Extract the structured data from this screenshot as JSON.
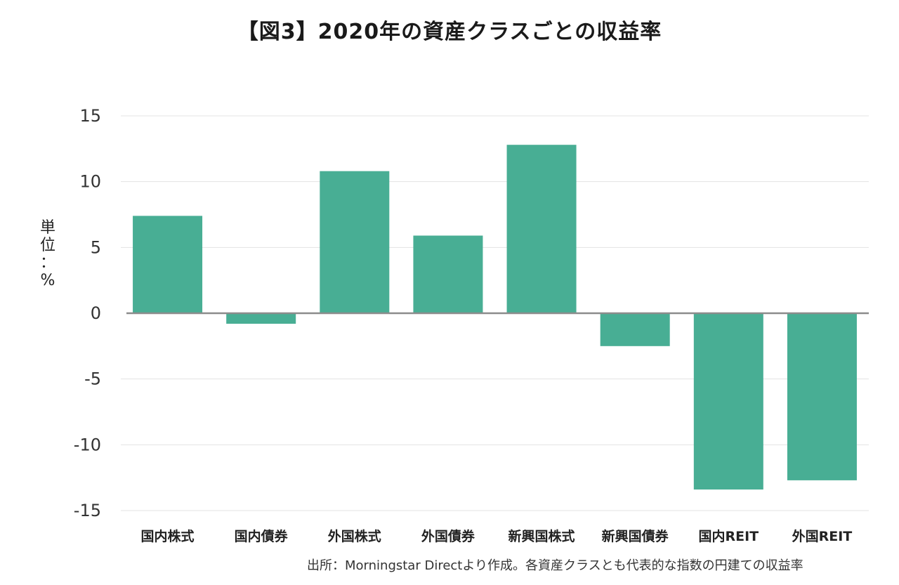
{
  "chart_data": {
    "type": "bar",
    "title": "【図3】2020年の資産クラスごとの収益率",
    "ylabel_chars": [
      "単",
      "位",
      "：",
      "%"
    ],
    "xlabel": "",
    "categories": [
      "国内株式",
      "国内債券",
      "外国株式",
      "外国債券",
      "新興国株式",
      "新興国債券",
      "国内REIT",
      "外国REIT"
    ],
    "values": [
      7.4,
      -0.8,
      10.8,
      5.9,
      12.8,
      -2.5,
      -13.4,
      -12.7
    ],
    "ylim": [
      -15,
      15
    ],
    "yticks": [
      15,
      10,
      5,
      0,
      -5,
      -10,
      -15
    ],
    "ytick_labels": [
      "15",
      "10",
      "5",
      "0",
      "-5",
      "-10",
      "-15"
    ],
    "grid": true,
    "legend": "none",
    "bar_color": "#48ae94",
    "zero_line_color": "#8c8c8c",
    "grid_color": "#e3e3e3"
  },
  "source_note": "出所：Morningstar Directより作成。各資産クラスとも代表的な指数の円建ての収益率"
}
